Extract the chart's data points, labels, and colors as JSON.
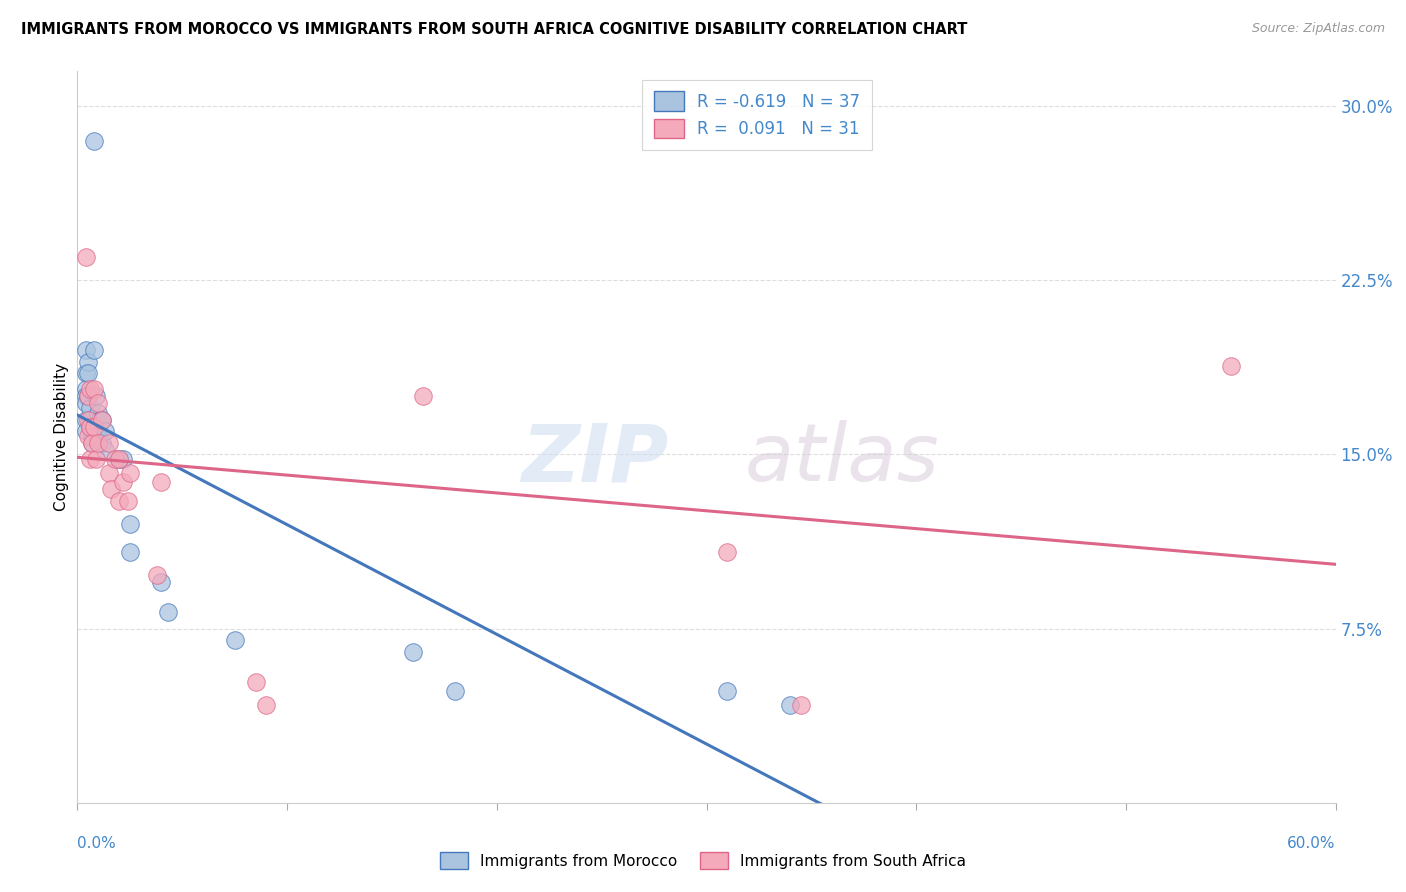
{
  "title": "IMMIGRANTS FROM MOROCCO VS IMMIGRANTS FROM SOUTH AFRICA COGNITIVE DISABILITY CORRELATION CHART",
  "source": "Source: ZipAtlas.com",
  "ylabel": "Cognitive Disability",
  "ytick_values": [
    0.075,
    0.15,
    0.225,
    0.3
  ],
  "xlim": [
    0.0,
    0.6
  ],
  "ylim": [
    0.0,
    0.315
  ],
  "r_morocco": -0.619,
  "n_morocco": 37,
  "r_south_africa": 0.091,
  "n_south_africa": 31,
  "morocco_color": "#aac4e0",
  "south_africa_color": "#f4aabb",
  "morocco_line_color": "#4477bb",
  "south_africa_line_color": "#dd6688",
  "watermark_zip": "ZIP",
  "watermark_atlas": "atlas",
  "morocco_x": [
    0.008,
    0.004,
    0.004,
    0.004,
    0.004,
    0.004,
    0.004,
    0.004,
    0.005,
    0.005,
    0.005,
    0.006,
    0.006,
    0.006,
    0.007,
    0.007,
    0.008,
    0.009,
    0.01,
    0.01,
    0.01,
    0.011,
    0.012,
    0.012,
    0.013,
    0.013,
    0.02,
    0.022,
    0.025,
    0.025,
    0.04,
    0.043,
    0.075,
    0.16,
    0.18,
    0.31,
    0.34
  ],
  "morocco_y": [
    0.285,
    0.195,
    0.185,
    0.178,
    0.175,
    0.172,
    0.165,
    0.16,
    0.19,
    0.185,
    0.175,
    0.17,
    0.165,
    0.162,
    0.158,
    0.155,
    0.195,
    0.175,
    0.168,
    0.162,
    0.158,
    0.165,
    0.165,
    0.155,
    0.16,
    0.152,
    0.148,
    0.148,
    0.12,
    0.108,
    0.095,
    0.082,
    0.07,
    0.065,
    0.048,
    0.048,
    0.042
  ],
  "south_africa_x": [
    0.004,
    0.005,
    0.005,
    0.005,
    0.006,
    0.006,
    0.006,
    0.007,
    0.008,
    0.008,
    0.009,
    0.01,
    0.01,
    0.012,
    0.015,
    0.015,
    0.016,
    0.018,
    0.02,
    0.02,
    0.022,
    0.024,
    0.025,
    0.038,
    0.04,
    0.085,
    0.09,
    0.165,
    0.31,
    0.345,
    0.55
  ],
  "south_africa_y": [
    0.235,
    0.175,
    0.165,
    0.158,
    0.178,
    0.162,
    0.148,
    0.155,
    0.178,
    0.162,
    0.148,
    0.172,
    0.155,
    0.165,
    0.155,
    0.142,
    0.135,
    0.148,
    0.148,
    0.13,
    0.138,
    0.13,
    0.142,
    0.098,
    0.138,
    0.052,
    0.042,
    0.175,
    0.108,
    0.042,
    0.188
  ],
  "background_color": "#ffffff",
  "grid_color": "#dddddd"
}
